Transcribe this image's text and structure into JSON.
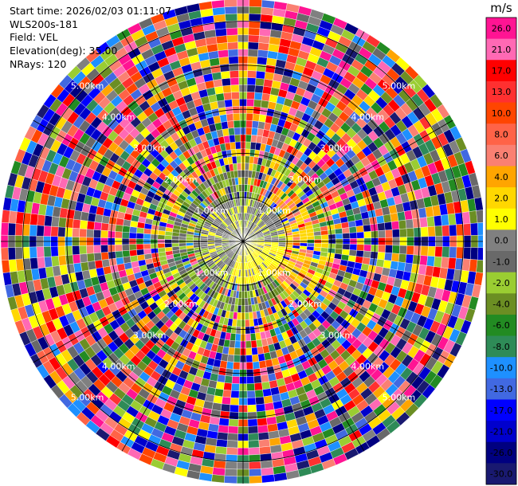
{
  "header": {
    "start_time": "Start time: 2026/02/03 01:11:07",
    "instrument": "WLS200s-181",
    "field": "Field: VEL",
    "elevation": "Elevation(deg): 35.00",
    "nrays": "NRays: 120"
  },
  "chart_data": {
    "type": "heatmap",
    "projection": "polar-ppi",
    "field": "VEL",
    "units": "m/s",
    "n_rays": 120,
    "elevation_deg": 35.0,
    "range_rings_km": [
      1.0,
      2.0,
      3.0,
      4.0,
      5.0
    ],
    "range_ring_labels": [
      "1.00km",
      "2.00km",
      "3.00km",
      "4.00km",
      "5.00km"
    ],
    "max_range_km": 5.5,
    "inner_pattern": "mostly near-zero (grey/olive) and positive 1-4 m/s (yellow/orange) within ~1.5 km; noisy random velocities beyond ~1.5 km",
    "colorbar": {
      "label": "m/s",
      "tick_labels": [
        "26.0",
        "21.0",
        "17.0",
        "13.0",
        "10.0",
        "8.0",
        "6.0",
        "4.0",
        "2.0",
        "1.0",
        "0.0",
        "-1.0",
        "-2.0",
        "-4.0",
        "-6.0",
        "-8.0",
        "-10.0",
        "-13.0",
        "-17.0",
        "-21.0",
        "-26.0",
        "-30.0"
      ],
      "colors": [
        "#ff1493",
        "#ff69b4",
        "#ff0000",
        "#ff3030",
        "#ff4500",
        "#ff6347",
        "#fa8072",
        "#ffa500",
        "#ffd700",
        "#ffff00",
        "#808080",
        "#696969",
        "#9acd32",
        "#6b8e23",
        "#228b22",
        "#2e8b57",
        "#1e90ff",
        "#4169e1",
        "#0000ff",
        "#0000cd",
        "#000080",
        "#191970"
      ]
    }
  }
}
